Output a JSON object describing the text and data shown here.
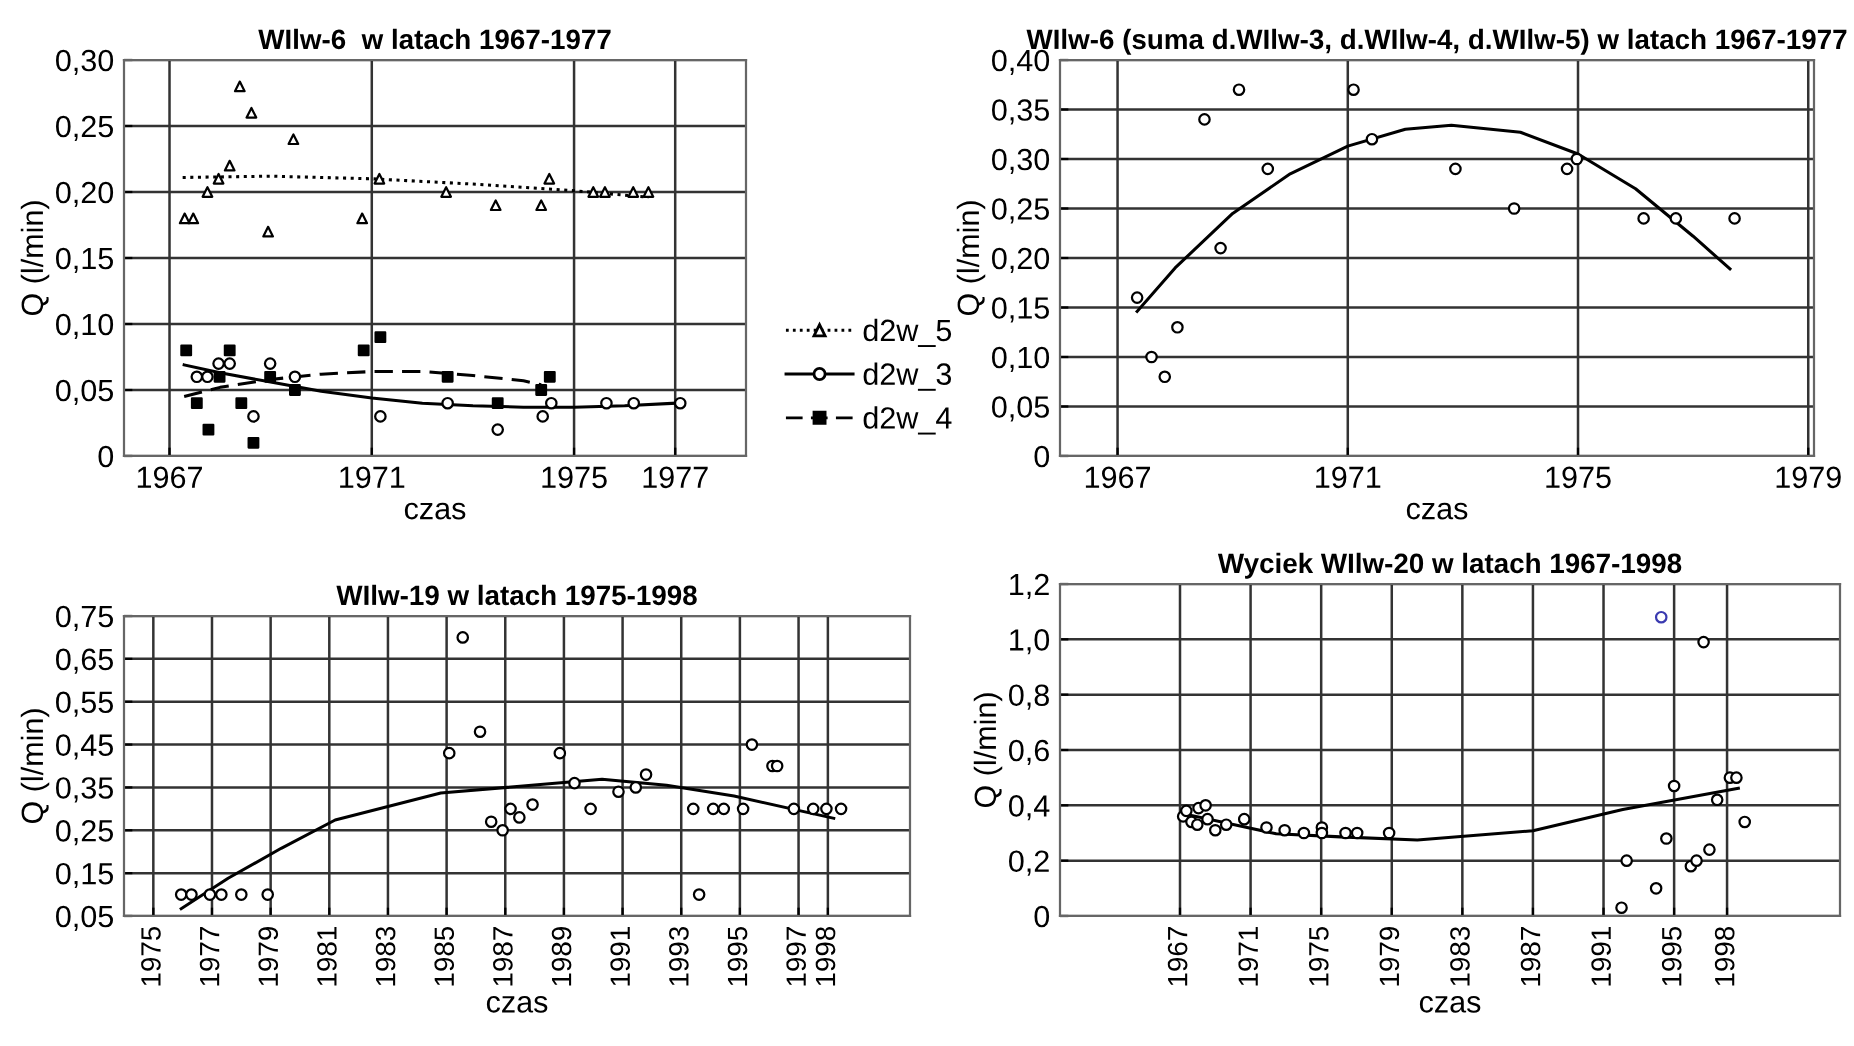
{
  "chart_data": [
    {
      "type": "scatter",
      "title": "WIlw-6  w latach 1967-1977",
      "xlabel": "czas",
      "ylabel": "Q (l/min)",
      "xlim": [
        1966.1,
        1978.4
      ],
      "ylim": [
        0,
        0.3
      ],
      "xticks": [
        1967,
        1971,
        1975,
        1977
      ],
      "yticks": [
        0,
        {
          "value": 0.05,
          "label": "0,05"
        },
        {
          "value": 0.1,
          "label": "0,10"
        },
        {
          "value": 0.15,
          "label": "0,15"
        },
        {
          "value": 0.2,
          "label": "0,20"
        },
        {
          "value": 0.25,
          "label": "0,25"
        },
        {
          "value": 0.3,
          "label": "0,30"
        }
      ],
      "grid": true,
      "legend": "right",
      "series": [
        {
          "name": "d2w_5",
          "color": "#000000",
          "marker": "triangle",
          "x": [
            1967.3,
            1967.47,
            1967.75,
            1967.97,
            1968.19,
            1968.39,
            1968.62,
            1968.95,
            1969.45,
            1970.81,
            1971.15,
            1972.47,
            1973.45,
            1974.35,
            1974.51,
            1975.38,
            1975.61,
            1976.17,
            1976.47
          ],
          "values": [
            0.18,
            0.18,
            0.2,
            0.21,
            0.22,
            0.28,
            0.26,
            0.17,
            0.24,
            0.18,
            0.21,
            0.2,
            0.19,
            0.19,
            0.21,
            0.2,
            0.2,
            0.2,
            0.2
          ]
        },
        {
          "type": "line",
          "color": "#000000",
          "line_style": "dotted",
          "x": [
            1967.26,
            1969,
            1971,
            1973,
            1975,
            1976.47
          ],
          "values": [
            0.211,
            0.212,
            0.21,
            0.206,
            0.201,
            0.196
          ]
        },
        {
          "name": "d2w_3",
          "color": "#000000",
          "marker": "circle",
          "x": [
            1967.54,
            1967.75,
            1967.97,
            1968.19,
            1968.66,
            1968.99,
            1969.48,
            1971.17,
            1972.5,
            1973.49,
            1974.38,
            1974.55,
            1975.64,
            1976.18,
            1977.1
          ],
          "values": [
            0.06,
            0.06,
            0.07,
            0.07,
            0.03,
            0.07,
            0.06,
            0.03,
            0.04,
            0.02,
            0.03,
            0.04,
            0.04,
            0.04,
            0.04
          ]
        },
        {
          "type": "line",
          "color": "#000000",
          "line_style": "solid",
          "x": [
            1967.29,
            1968,
            1969,
            1970,
            1971,
            1972,
            1973,
            1974,
            1975,
            1976,
            1977
          ],
          "values": [
            0.069,
            0.063,
            0.056,
            0.049,
            0.044,
            0.04,
            0.038,
            0.037,
            0.037,
            0.038,
            0.04
          ]
        },
        {
          "name": "d2w_4",
          "color": "#000000",
          "marker": "square",
          "x": [
            1967.33,
            1967.54,
            1967.77,
            1967.99,
            1968.19,
            1968.42,
            1968.66,
            1968.99,
            1969.48,
            1970.84,
            1971.17,
            1972.5,
            1973.49,
            1974.35,
            1974.52
          ],
          "values": [
            0.08,
            0.04,
            0.02,
            0.06,
            0.08,
            0.04,
            0.01,
            0.06,
            0.05,
            0.08,
            0.09,
            0.06,
            0.04,
            0.05,
            0.06
          ]
        },
        {
          "type": "line",
          "color": "#000000",
          "line_style": "dashed",
          "x": [
            1967.29,
            1968,
            1969,
            1970,
            1971,
            1972,
            1973,
            1974,
            1974.35
          ],
          "values": [
            0.045,
            0.052,
            0.058,
            0.062,
            0.064,
            0.064,
            0.061,
            0.057,
            0.054
          ]
        }
      ]
    },
    {
      "type": "scatter",
      "title": "WIlw-6 (suma d.WIlw-3, d.WIlw-4, d.WIlw-5) w latach 1967-1977",
      "xlabel": "czas",
      "ylabel": "Q (l/min)",
      "xlim": [
        1966,
        1979.1
      ],
      "ylim": [
        0,
        0.4
      ],
      "xticks": [
        1967,
        1971,
        1975,
        1979
      ],
      "yticks": [
        0,
        {
          "value": 0.05,
          "label": "0,05"
        },
        {
          "value": 0.1,
          "label": "0,10"
        },
        {
          "value": 0.15,
          "label": "0,15"
        },
        {
          "value": 0.2,
          "label": "0,20"
        },
        {
          "value": 0.25,
          "label": "0,25"
        },
        {
          "value": 0.3,
          "label": "0,30"
        },
        {
          "value": 0.35,
          "label": "0,35"
        },
        {
          "value": 0.4,
          "label": "0,40"
        }
      ],
      "grid": true,
      "series": [
        {
          "color": "#000000",
          "marker": "circle",
          "x": [
            1967.34,
            1967.59,
            1967.82,
            1968.04,
            1968.51,
            1968.79,
            1969.11,
            1969.61,
            1971.1,
            1971.42,
            1972.87,
            1973.89,
            1974.81,
            1974.98,
            1976.14,
            1976.7,
            1977.72
          ],
          "values": [
            0.16,
            0.1,
            0.08,
            0.13,
            0.34,
            0.21,
            0.37,
            0.29,
            0.37,
            0.32,
            0.29,
            0.25,
            0.29,
            0.3,
            0.24,
            0.24,
            0.24
          ]
        },
        {
          "type": "line",
          "color": "#000000",
          "line_style": "solid",
          "x": [
            1967.34,
            1968,
            1969,
            1970,
            1971,
            1972,
            1972.8,
            1974,
            1975,
            1976,
            1977,
            1977.64
          ],
          "values": [
            0.146,
            0.19,
            0.245,
            0.285,
            0.313,
            0.33,
            0.334,
            0.327,
            0.305,
            0.27,
            0.222,
            0.189
          ]
        }
      ]
    },
    {
      "type": "scatter",
      "title": "WIlw-19 w latach 1975-1998",
      "xlabel": "czas",
      "ylabel": "Q (l/min)",
      "xlim": [
        1974,
        2000.8
      ],
      "ylim": [
        0.05,
        0.75
      ],
      "xticks": [
        1975,
        1977,
        1979,
        1981,
        1983,
        1985,
        1987,
        1989,
        1991,
        1993,
        1995,
        1997,
        1998
      ],
      "yticks": [
        {
          "value": 0.05,
          "label": "0,05"
        },
        {
          "value": 0.15,
          "label": "0,15"
        },
        {
          "value": 0.25,
          "label": "0,25"
        },
        {
          "value": 0.35,
          "label": "0,35"
        },
        {
          "value": 0.45,
          "label": "0,45"
        },
        {
          "value": 0.55,
          "label": "0,55"
        },
        {
          "value": 0.65,
          "label": "0,65"
        },
        {
          "value": 0.75,
          "label": "0,75"
        }
      ],
      "grid": true,
      "series": [
        {
          "color": "#000000",
          "marker": "circle",
          "x": [
            1975.95,
            1976.3,
            1976.93,
            1977.32,
            1978.0,
            1978.9,
            1985.09,
            1985.55,
            1986.14,
            1986.52,
            1986.91,
            1987.18,
            1987.48,
            1987.93,
            1988.86,
            1989.36,
            1989.91,
            1990.86,
            1991.45,
            1991.8,
            1993.41,
            1993.61,
            1994.09,
            1994.45,
            1995.11,
            1995.41,
            1996.11,
            1996.27,
            1996.84,
            1997.5,
            1997.95,
            1998.45
          ],
          "values": [
            0.1,
            0.1,
            0.1,
            0.1,
            0.1,
            0.1,
            0.43,
            0.7,
            0.48,
            0.27,
            0.25,
            0.3,
            0.28,
            0.31,
            0.43,
            0.36,
            0.3,
            0.34,
            0.35,
            0.38,
            0.3,
            0.1,
            0.3,
            0.3,
            0.3,
            0.45,
            0.4,
            0.4,
            0.3,
            0.3,
            0.3,
            0.3
          ]
        },
        {
          "type": "line",
          "color": "#000000",
          "line_style": "solid",
          "x": [
            1975.95,
            1977.55,
            1979.36,
            1981.2,
            1984.8,
            1990.3,
            1992.5,
            1994.8,
            1998.2
          ],
          "values": [
            0.067,
            0.138,
            0.208,
            0.274,
            0.337,
            0.369,
            0.355,
            0.33,
            0.278
          ]
        }
      ]
    },
    {
      "type": "scatter",
      "title": "Wyciek WIlw-20 w latach 1967-1998",
      "xlabel": "czas",
      "ylabel": "Q (l/min)",
      "xlim": [
        1960.2,
        2004.4
      ],
      "ylim": [
        0,
        1.2
      ],
      "xticks": [
        1967,
        1971,
        1975,
        1979,
        1983,
        1987,
        1991,
        1995,
        1998
      ],
      "yticks": [
        0,
        {
          "value": 0.2,
          "label": "0,2"
        },
        {
          "value": 0.4,
          "label": "0,4"
        },
        {
          "value": 0.6,
          "label": "0,6"
        },
        {
          "value": 0.8,
          "label": "0,8"
        },
        {
          "value": 1.0,
          "label": "1,0"
        },
        {
          "value": 1.2,
          "label": "1,2"
        }
      ],
      "grid": true,
      "series": [
        {
          "color": "#000000",
          "marker": "circle",
          "x": [
            1967.18,
            1967.36,
            1967.65,
            1967.98,
            1968.05,
            1968.45,
            1968.56,
            1969.0,
            1969.62,
            1970.64,
            1971.9,
            1972.93,
            1974.02,
            1975.04,
            1975.04,
            1976.38,
            1977.04,
            1978.85,
            1992.02,
            1992.31,
            1993.98,
            1994.56,
            1995.0,
            1995.95,
            1996.27,
            1996.67,
            1997.0,
            1997.44,
            1998.16,
            1998.53,
            1999.0
          ],
          "values": [
            0.36,
            0.38,
            0.34,
            0.33,
            0.39,
            0.4,
            0.35,
            0.31,
            0.33,
            0.35,
            0.32,
            0.31,
            0.3,
            0.32,
            0.3,
            0.3,
            0.3,
            0.3,
            0.03,
            0.2,
            0.1,
            0.28,
            0.47,
            0.18,
            0.2,
            0.99,
            0.24,
            0.42,
            0.5,
            0.5,
            0.34
          ]
        },
        {
          "color": "#3a3ab0",
          "marker": "circle",
          "x": [
            1994.27
          ],
          "values": [
            1.08
          ]
        },
        {
          "type": "line",
          "color": "#000000",
          "line_style": "solid",
          "x": [
            1967.18,
            1972.45,
            1976.1,
            1980.45,
            1987,
            1992.09,
            1998.64
          ],
          "values": [
            0.37,
            0.297,
            0.286,
            0.275,
            0.308,
            0.385,
            0.462
          ]
        }
      ]
    }
  ]
}
